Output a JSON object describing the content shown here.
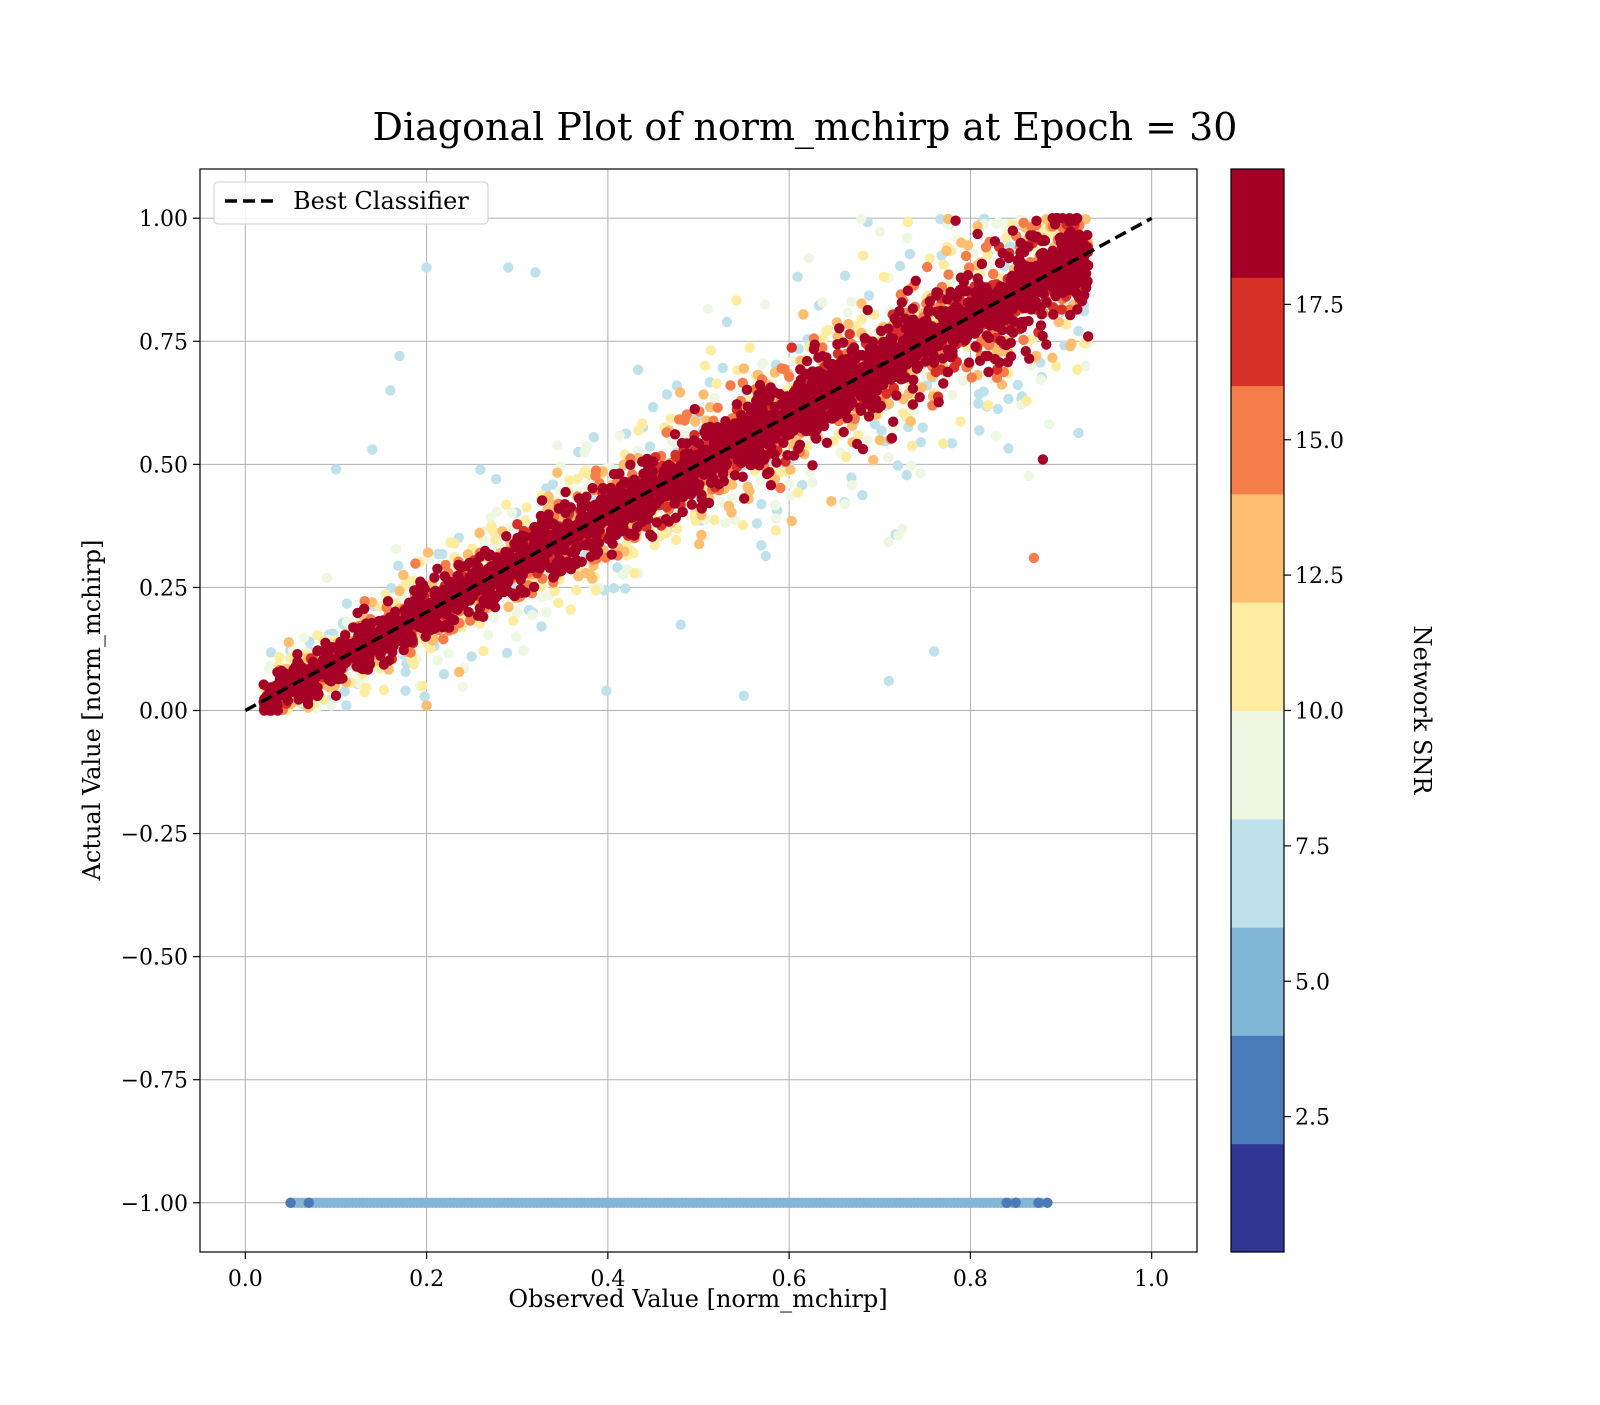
{
  "chart_data": {
    "type": "scatter",
    "title": "Diagonal Plot of norm_mchirp at Epoch = 30",
    "xlabel": "Observed Value [norm_mchirp]",
    "ylabel": "Actual Value [norm_mchirp]",
    "xlim": [
      -0.05,
      1.05
    ],
    "ylim": [
      -1.1,
      1.1
    ],
    "x_ticks": [
      0.0,
      0.2,
      0.4,
      0.6,
      0.8,
      1.0
    ],
    "x_tick_labels": [
      "0.0",
      "0.2",
      "0.4",
      "0.6",
      "0.8",
      "1.0"
    ],
    "y_ticks": [
      1.0,
      0.75,
      0.5,
      0.25,
      0.0,
      -0.25,
      -0.5,
      -0.75,
      -1.0
    ],
    "y_tick_labels": [
      "1.00",
      "0.75",
      "0.50",
      "0.25",
      "0.00",
      "−0.25",
      "−0.50",
      "−0.75",
      "−1.00"
    ],
    "grid": true,
    "legend": {
      "placement": "top-left",
      "entries": [
        {
          "label": "Best Classifier",
          "style": "dashed",
          "color": "#000000"
        }
      ]
    },
    "reference_line": {
      "name": "Best Classifier",
      "x": [
        0.0,
        1.0
      ],
      "y": [
        0.0,
        1.0
      ]
    },
    "colorbar": {
      "label": "Network SNR",
      "range": [
        0,
        20
      ],
      "ticks": [
        2.5,
        5.0,
        7.5,
        10.0,
        12.5,
        15.0,
        17.5
      ],
      "tick_labels": [
        "2.5",
        "5.0",
        "7.5",
        "10.0",
        "12.5",
        "15.0",
        "17.5"
      ],
      "colors": [
        "#313695",
        "#4a7ab7",
        "#82b6d6",
        "#bee1ec",
        "#eef7e1",
        "#feeda1",
        "#fdbe70",
        "#f57d4a",
        "#d73027",
        "#a50026"
      ]
    },
    "series": [
      {
        "kind": "diagonal-cloud",
        "x_range": [
          0.02,
          0.93
        ],
        "y_range": [
          0.0,
          1.0
        ],
        "color_scale": "Network SNR",
        "note_points": [
          {
            "x": 0.1,
            "y": 0.03,
            "snr_bin": 9
          },
          {
            "x": 0.5,
            "y": 0.5,
            "snr_bin": 9
          },
          {
            "x": 0.9,
            "y": 0.95,
            "snr_bin": 9
          },
          {
            "x": 0.2,
            "y": 0.9,
            "snr_bin": 3
          },
          {
            "x": 0.29,
            "y": 0.9,
            "snr_bin": 3
          },
          {
            "x": 0.32,
            "y": 0.89,
            "snr_bin": 3
          },
          {
            "x": 0.17,
            "y": 0.72,
            "snr_bin": 3
          },
          {
            "x": 0.16,
            "y": 0.65,
            "snr_bin": 3
          },
          {
            "x": 0.14,
            "y": 0.53,
            "snr_bin": 3
          },
          {
            "x": 0.1,
            "y": 0.49,
            "snr_bin": 3
          },
          {
            "x": 0.87,
            "y": 0.31,
            "snr_bin": 7
          },
          {
            "x": 0.88,
            "y": 0.51,
            "snr_bin": 9
          },
          {
            "x": 0.93,
            "y": 0.76,
            "snr_bin": 9
          },
          {
            "x": 0.71,
            "y": 0.06,
            "snr_bin": 3
          },
          {
            "x": 0.76,
            "y": 0.12,
            "snr_bin": 3
          },
          {
            "x": 0.55,
            "y": 0.03,
            "snr_bin": 3
          },
          {
            "x": 0.2,
            "y": 0.01,
            "snr_bin": 6
          }
        ]
      },
      {
        "kind": "flat-band",
        "y": -1.0,
        "x_range": [
          0.05,
          0.88
        ],
        "color": "#82b6d6",
        "edge_color": "#4a7ab7"
      }
    ]
  }
}
